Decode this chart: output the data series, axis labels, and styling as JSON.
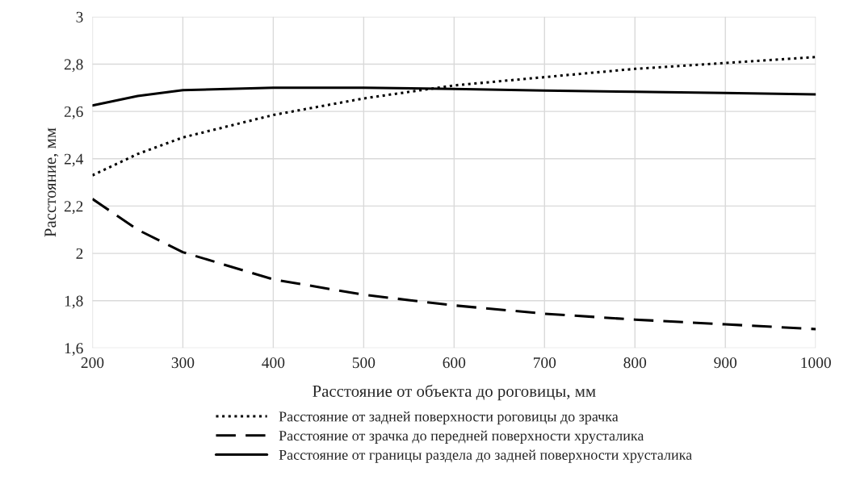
{
  "chart_data": {
    "type": "line",
    "xlabel": "Расстояние от объекта до роговицы, мм",
    "ylabel": "Расстояние, мм",
    "x": [
      200,
      250,
      300,
      400,
      500,
      600,
      700,
      800,
      900,
      1000
    ],
    "series": [
      {
        "name": "Расстояние от задней поверхности роговицы до зрачка",
        "color": "#000000",
        "line_style": "dotted",
        "values": [
          2.33,
          2.42,
          2.49,
          2.585,
          2.655,
          2.71,
          2.745,
          2.78,
          2.805,
          2.83
        ]
      },
      {
        "name": "Расстояние от зрачка до передней поверхности хрусталика",
        "color": "#000000",
        "line_style": "dashed",
        "values": [
          2.23,
          2.1,
          2.005,
          1.89,
          1.825,
          1.78,
          1.745,
          1.72,
          1.7,
          1.68
        ]
      },
      {
        "name": "Расстояние от границы раздела до задней поверхности хрусталика",
        "color": "#000000",
        "line_style": "solid",
        "values": [
          2.625,
          2.665,
          2.69,
          2.7,
          2.7,
          2.695,
          2.688,
          2.683,
          2.678,
          2.672
        ]
      }
    ],
    "xlim": [
      200,
      1000
    ],
    "xticks": [
      200,
      300,
      400,
      500,
      600,
      700,
      800,
      900,
      1000
    ],
    "ylim": [
      1.6,
      3
    ],
    "yticks": [
      {
        "value": 1.6,
        "label": "1,6"
      },
      {
        "value": 1.8,
        "label": "1,8"
      },
      {
        "value": 2,
        "label": "2"
      },
      {
        "value": 2.2,
        "label": "2,2"
      },
      {
        "value": 2.4,
        "label": "2,4"
      },
      {
        "value": 2.6,
        "label": "2,6"
      },
      {
        "value": 2.8,
        "label": "2,8"
      },
      {
        "value": 3,
        "label": "3"
      }
    ],
    "grid": true,
    "legend": "bottom",
    "marker": "none"
  }
}
